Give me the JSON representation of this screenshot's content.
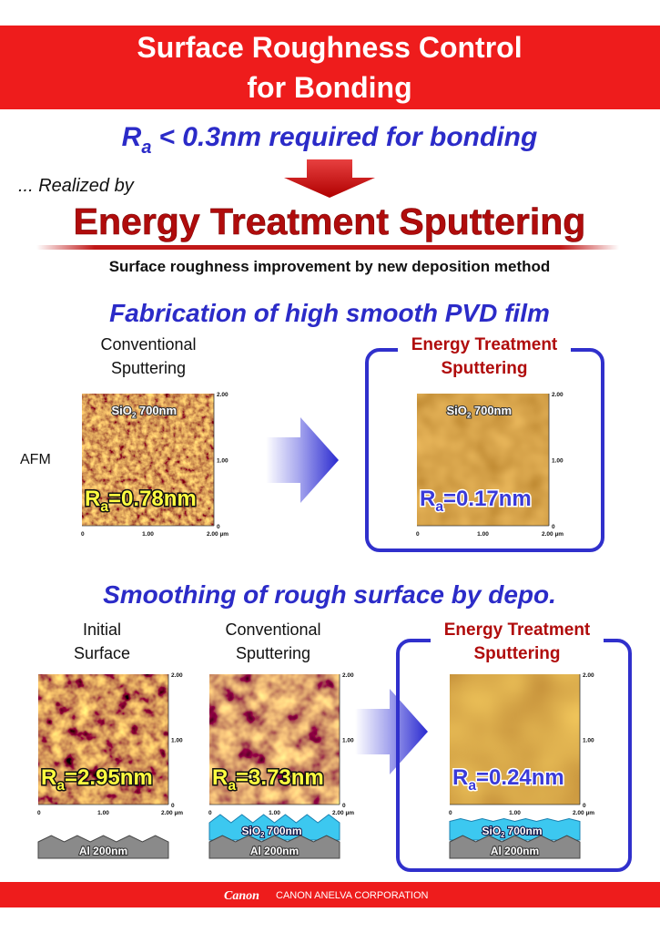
{
  "header": {
    "title_lines": [
      "Surface Roughness Control",
      "for Bonding"
    ]
  },
  "requirement": {
    "symbol": "R",
    "subscript": "a",
    "text": "< 0.3nm required for bonding"
  },
  "realized_by": "... Realized by",
  "method": {
    "name": "Energy Treatment Sputtering",
    "subtitle": "Surface roughness improvement by new deposition method"
  },
  "axis_labels": {
    "y_top": "2.00",
    "y_mid": "1.00",
    "y_bottom": "0",
    "x_left": "0",
    "x_mid": "1.00",
    "x_right": "2.00 µm"
  },
  "sections": [
    {
      "title": "Fabrication of high smooth PVD film",
      "row_label": "AFM",
      "panels": [
        {
          "label": [
            "Conventional",
            "Sputtering"
          ],
          "film": {
            "symbol": "SiO",
            "subscript": "2",
            "text": "700nm"
          },
          "ra": {
            "symbol": "R",
            "subscript": "a",
            "text": "=0.78nm"
          }
        },
        {
          "label": [
            "Energy Treatment",
            "Sputtering"
          ],
          "film": {
            "symbol": "SiO",
            "subscript": "2",
            "text": "700nm"
          },
          "ra": {
            "symbol": "R",
            "subscript": "a",
            "text": "=0.17nm"
          }
        }
      ]
    },
    {
      "title": "Smoothing of rough surface by depo.",
      "panels": [
        {
          "label": [
            "Initial",
            "Surface"
          ],
          "ra": {
            "symbol": "R",
            "subscript": "a",
            "text": "=2.95nm"
          },
          "layers": [
            {
              "text": "Al 200nm"
            }
          ]
        },
        {
          "label": [
            "Conventional",
            "Sputtering"
          ],
          "ra": {
            "symbol": "R",
            "subscript": "a",
            "text": "=3.73nm"
          },
          "layers": [
            {
              "symbol": "SiO",
              "subscript": "2",
              "text": "700nm"
            },
            {
              "text": "Al 200nm"
            }
          ]
        },
        {
          "label": [
            "Energy Treatment",
            "Sputtering"
          ],
          "ra": {
            "symbol": "R",
            "subscript": "a",
            "text": "=0.24nm"
          },
          "layers": [
            {
              "symbol": "SiO",
              "subscript": "2",
              "text": "700nm"
            },
            {
              "text": "Al 200nm"
            }
          ]
        }
      ]
    }
  ],
  "footer": {
    "logo": "Canon",
    "company": "CANON ANELVA CORPORATION"
  }
}
